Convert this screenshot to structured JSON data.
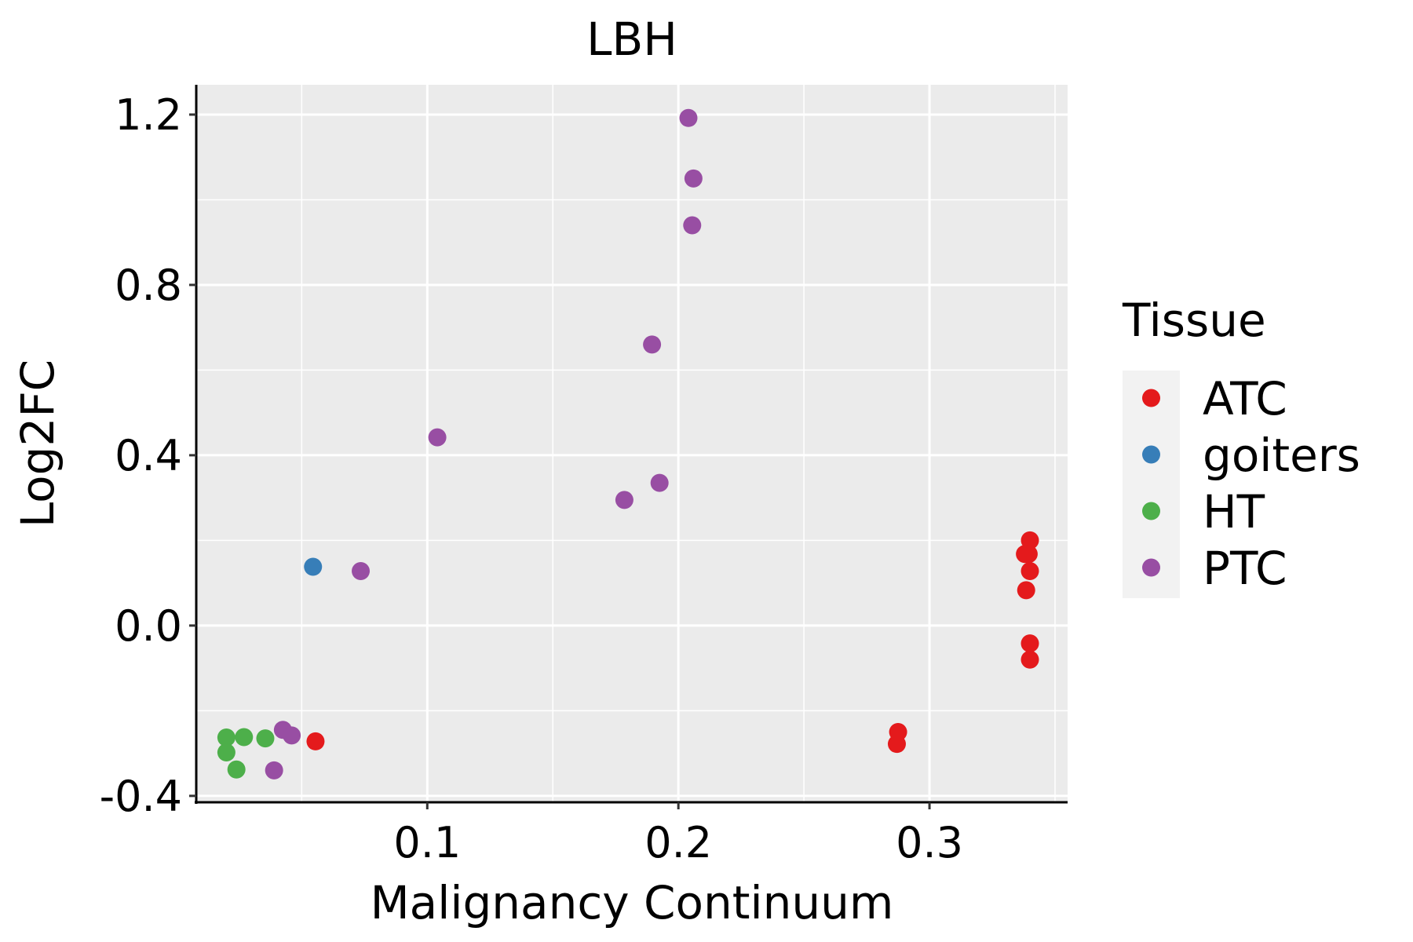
{
  "chart_data": {
    "type": "scatter",
    "title": "LBH",
    "xlabel": "Malignancy Continuum",
    "ylabel": "Log2FC",
    "xlim": [
      0.008,
      0.355
    ],
    "ylim": [
      -0.415,
      1.27
    ],
    "x_ticks": [
      0.1,
      0.2,
      0.3
    ],
    "x_tick_labels": [
      "0.1",
      "0.2",
      "0.3"
    ],
    "x_minor_ticks": [
      0.05,
      0.15,
      0.25,
      0.35
    ],
    "y_ticks": [
      -0.4,
      0.0,
      0.4,
      0.8,
      1.2
    ],
    "y_tick_labels": [
      "-0.4",
      "0.0",
      "0.4",
      "0.8",
      "1.2"
    ],
    "y_minor_ticks": [
      -0.2,
      0.2,
      0.6,
      1.0
    ],
    "grid": true,
    "panel_background": "#ebebeb",
    "legend": {
      "title": "Tissue",
      "placement": "right",
      "background": "#f2f2f2"
    },
    "series": [
      {
        "name": "ATC",
        "color": "#e41a1c",
        "points": [
          [
            0.0555,
            -0.272
          ],
          [
            0.2875,
            -0.25
          ],
          [
            0.287,
            -0.278
          ],
          [
            0.34,
            0.2
          ],
          [
            0.3395,
            0.168
          ],
          [
            0.338,
            0.168
          ],
          [
            0.34,
            0.128
          ],
          [
            0.3385,
            0.083
          ],
          [
            0.34,
            -0.042
          ],
          [
            0.34,
            -0.08
          ]
        ]
      },
      {
        "name": "goiters",
        "color": "#377eb8",
        "points": [
          [
            0.0545,
            0.138
          ]
        ]
      },
      {
        "name": "HT",
        "color": "#4daf4a",
        "points": [
          [
            0.02,
            -0.263
          ],
          [
            0.027,
            -0.262
          ],
          [
            0.0355,
            -0.265
          ],
          [
            0.02,
            -0.298
          ],
          [
            0.024,
            -0.338
          ]
        ]
      },
      {
        "name": "PTC",
        "color": "#984ea3",
        "points": [
          [
            0.204,
            1.192
          ],
          [
            0.206,
            1.05
          ],
          [
            0.2055,
            0.94
          ],
          [
            0.1895,
            0.66
          ],
          [
            0.104,
            0.442
          ],
          [
            0.1925,
            0.335
          ],
          [
            0.1785,
            0.295
          ],
          [
            0.0735,
            0.128
          ],
          [
            0.0425,
            -0.245
          ],
          [
            0.046,
            -0.258
          ],
          [
            0.039,
            -0.34
          ]
        ]
      }
    ]
  }
}
